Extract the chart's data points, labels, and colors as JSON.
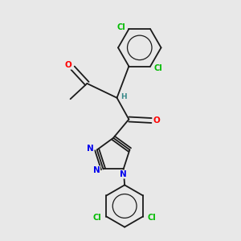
{
  "background_color": "#e8e8e8",
  "bond_color": "#1a1a1a",
  "atom_colors": {
    "Cl": "#00bb00",
    "O": "#ff0000",
    "N": "#0000ee",
    "H": "#3a8a8a",
    "C": "#1a1a1a"
  },
  "figsize": [
    3.0,
    3.0
  ],
  "dpi": 100
}
